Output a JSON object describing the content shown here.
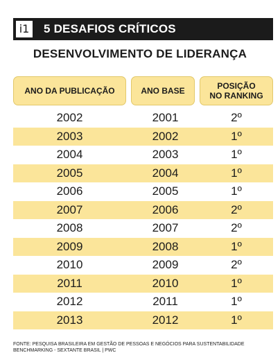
{
  "header": {
    "badge": "i1",
    "title": "5 DESAFIOS CRÍTICOS"
  },
  "subtitle": "DESENVOLVIMENTO DE LIDERANÇA",
  "table": {
    "columns": [
      "ANO DA PUBLICAÇÃO",
      "ANO BASE",
      "POSIÇÃO\nNO RANKING"
    ],
    "rows": [
      {
        "pub": "2002",
        "base": "2001",
        "pos": "2º"
      },
      {
        "pub": "2003",
        "base": "2002",
        "pos": "1º"
      },
      {
        "pub": "2004",
        "base": "2003",
        "pos": "1º"
      },
      {
        "pub": "2005",
        "base": "2004",
        "pos": "1º"
      },
      {
        "pub": "2006",
        "base": "2005",
        "pos": "1º"
      },
      {
        "pub": "2007",
        "base": "2006",
        "pos": "2º"
      },
      {
        "pub": "2008",
        "base": "2007",
        "pos": "2º"
      },
      {
        "pub": "2009",
        "base": "2008",
        "pos": "1º"
      },
      {
        "pub": "2010",
        "base": "2009",
        "pos": "2º"
      },
      {
        "pub": "2011",
        "base": "2010",
        "pos": "1º"
      },
      {
        "pub": "2012",
        "base": "2011",
        "pos": "1º"
      },
      {
        "pub": "2013",
        "base": "2012",
        "pos": "1º"
      }
    ]
  },
  "footer": "FONTE: PESQUISA BRASILEIRA EM GESTÃO DE PESSOAS E NEGÓCIOS PARA SUSTENTABILIDADE BENCHMARKING - SEXTANTE BRASIL | PWC",
  "colors": {
    "header_bg": "#1b1b1b",
    "accent": "#fbe59a",
    "text": "#1b1b1b"
  }
}
